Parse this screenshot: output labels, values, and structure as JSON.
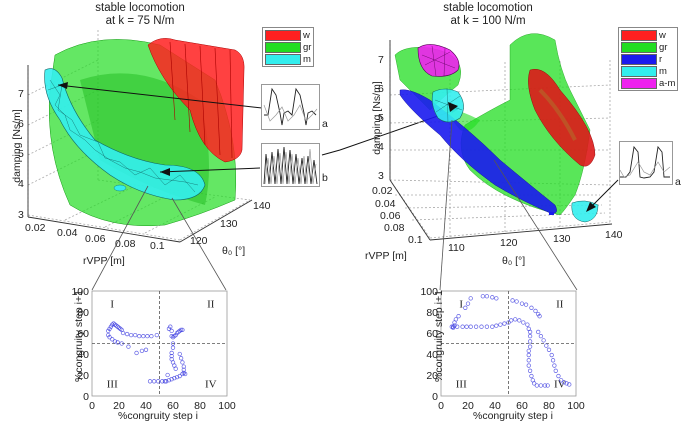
{
  "chart_data": [
    {
      "type": "3d-volume",
      "title": [
        "stable locomotion",
        "at k = 75 N/m"
      ],
      "zlabel": "damping [Ns/m]",
      "xlabel": "rVPP [m]",
      "ylabel": "θ₀ [°]",
      "z_ticks": [
        "3",
        "4",
        "5",
        "6",
        "7"
      ],
      "x_ticks": [
        "0.02",
        "0.04",
        "0.06",
        "0.08",
        "0.1"
      ],
      "y_ticks": [
        "120",
        "130",
        "140"
      ],
      "legend": [
        {
          "label": "w",
          "color": "#ff2020"
        },
        {
          "label": "gr",
          "color": "#22dd22"
        },
        {
          "label": "m",
          "color": "#33eeee"
        }
      ],
      "insets": [
        {
          "label": "a"
        },
        {
          "label": "b"
        }
      ]
    },
    {
      "type": "3d-volume",
      "title": [
        "stable locomotion",
        "at k = 100 N/m"
      ],
      "zlabel": "damping [Ns/m]",
      "xlabel": "rVPP [m]",
      "ylabel": "θ₀ [°]",
      "z_ticks": [
        "3",
        "4",
        "5",
        "6",
        "7"
      ],
      "x_ticks": [
        "0.02",
        "0.04",
        "0.06",
        "0.08",
        "0.1"
      ],
      "y_ticks": [
        "110",
        "120",
        "130",
        "140"
      ],
      "legend": [
        {
          "label": "w",
          "color": "#ff2020"
        },
        {
          "label": "gr",
          "color": "#22dd22"
        },
        {
          "label": "r",
          "color": "#1a1aee"
        },
        {
          "label": "m",
          "color": "#33eeee"
        },
        {
          "label": "a-m",
          "color": "#ee22ee"
        }
      ],
      "insets": [
        {
          "label": "a"
        }
      ]
    },
    {
      "type": "scatter",
      "xlabel": "%congruity step i",
      "ylabel": "%congruity step i+1",
      "xlim": [
        0,
        100
      ],
      "ylim": [
        0,
        100
      ],
      "x_ticks": [
        "0",
        "20",
        "40",
        "60",
        "80",
        "100"
      ],
      "y_ticks": [
        "0",
        "20",
        "40",
        "60",
        "80",
        "100"
      ],
      "quadrants": [
        "I",
        "II",
        "III",
        "IV"
      ],
      "divider": 50,
      "points": [
        [
          12,
          62
        ],
        [
          13,
          64
        ],
        [
          14,
          66
        ],
        [
          15,
          68
        ],
        [
          16,
          69
        ],
        [
          17,
          68
        ],
        [
          18,
          67
        ],
        [
          19,
          66
        ],
        [
          20,
          65
        ],
        [
          21,
          64
        ],
        [
          22,
          63
        ],
        [
          12,
          58
        ],
        [
          13,
          56
        ],
        [
          15,
          54
        ],
        [
          17,
          52
        ],
        [
          19,
          51
        ],
        [
          23,
          60
        ],
        [
          26,
          59
        ],
        [
          29,
          58
        ],
        [
          32,
          58
        ],
        [
          35,
          57
        ],
        [
          38,
          57
        ],
        [
          41,
          57
        ],
        [
          44,
          57
        ],
        [
          48,
          58
        ],
        [
          22,
          50
        ],
        [
          27,
          47
        ],
        [
          33,
          41
        ],
        [
          37,
          43
        ],
        [
          40,
          44
        ],
        [
          43,
          14
        ],
        [
          46,
          14
        ],
        [
          49,
          14
        ],
        [
          52,
          14
        ],
        [
          55,
          14
        ],
        [
          57,
          15
        ],
        [
          59,
          16
        ],
        [
          61,
          17
        ],
        [
          63,
          18
        ],
        [
          65,
          19
        ],
        [
          67,
          21
        ],
        [
          68,
          22
        ],
        [
          69,
          21
        ],
        [
          56,
          20
        ],
        [
          54,
          14
        ],
        [
          57,
          64
        ],
        [
          58,
          66
        ],
        [
          59,
          62
        ],
        [
          59,
          57
        ],
        [
          60,
          56
        ],
        [
          61,
          57
        ],
        [
          62,
          58
        ],
        [
          63,
          60
        ],
        [
          64,
          61
        ],
        [
          65,
          62
        ],
        [
          66,
          63
        ],
        [
          67,
          63
        ],
        [
          60,
          50
        ],
        [
          60,
          46
        ],
        [
          59,
          41
        ],
        [
          59,
          38
        ],
        [
          59,
          35
        ],
        [
          60,
          32
        ],
        [
          61,
          29
        ],
        [
          62,
          26
        ],
        [
          65,
          40
        ],
        [
          66,
          36
        ],
        [
          67,
          32
        ],
        [
          68,
          28
        ],
        [
          68,
          25
        ]
      ]
    },
    {
      "type": "scatter",
      "xlabel": "%congruity step i",
      "ylabel": "%congruity step i+1",
      "xlim": [
        0,
        100
      ],
      "ylim": [
        0,
        100
      ],
      "x_ticks": [
        "0",
        "20",
        "40",
        "60",
        "80",
        "100"
      ],
      "y_ticks": [
        "0",
        "20",
        "40",
        "60",
        "80",
        "100"
      ],
      "quadrants": [
        "I",
        "II",
        "III",
        "IV"
      ],
      "divider": 50,
      "points": [
        [
          9,
          65
        ],
        [
          10,
          67
        ],
        [
          10,
          70
        ],
        [
          11,
          73
        ],
        [
          13,
          76
        ],
        [
          9,
          66
        ],
        [
          8,
          66
        ],
        [
          12,
          66
        ],
        [
          16,
          66
        ],
        [
          19,
          66
        ],
        [
          22,
          66
        ],
        [
          26,
          66
        ],
        [
          30,
          66
        ],
        [
          34,
          66
        ],
        [
          38,
          66
        ],
        [
          41,
          67
        ],
        [
          44,
          68
        ],
        [
          47,
          69
        ],
        [
          50,
          70
        ],
        [
          52,
          72
        ],
        [
          18,
          84
        ],
        [
          20,
          88
        ],
        [
          22,
          93
        ],
        [
          31,
          95
        ],
        [
          34,
          95
        ],
        [
          38,
          94
        ],
        [
          41,
          93
        ],
        [
          53,
          91
        ],
        [
          56,
          90
        ],
        [
          60,
          88
        ],
        [
          63,
          87
        ],
        [
          67,
          84
        ],
        [
          70,
          81
        ],
        [
          72,
          78
        ],
        [
          73,
          76
        ],
        [
          55,
          73
        ],
        [
          58,
          72
        ],
        [
          61,
          70
        ],
        [
          64,
          68
        ],
        [
          65,
          64
        ],
        [
          66,
          61
        ],
        [
          66,
          57
        ],
        [
          66,
          52
        ],
        [
          66,
          47
        ],
        [
          65,
          43
        ],
        [
          65,
          39
        ],
        [
          65,
          34
        ],
        [
          65,
          29
        ],
        [
          66,
          24
        ],
        [
          67,
          19
        ],
        [
          68,
          15
        ],
        [
          69,
          12
        ],
        [
          71,
          10
        ],
        [
          74,
          10
        ],
        [
          77,
          10
        ],
        [
          79,
          10
        ],
        [
          72,
          61
        ],
        [
          74,
          57
        ],
        [
          76,
          53
        ],
        [
          78,
          48
        ],
        [
          80,
          44
        ],
        [
          82,
          39
        ],
        [
          83,
          34
        ],
        [
          84,
          29
        ],
        [
          85,
          24
        ],
        [
          87,
          19
        ],
        [
          89,
          15
        ],
        [
          91,
          13
        ],
        [
          93,
          12
        ],
        [
          95,
          11
        ]
      ]
    }
  ]
}
